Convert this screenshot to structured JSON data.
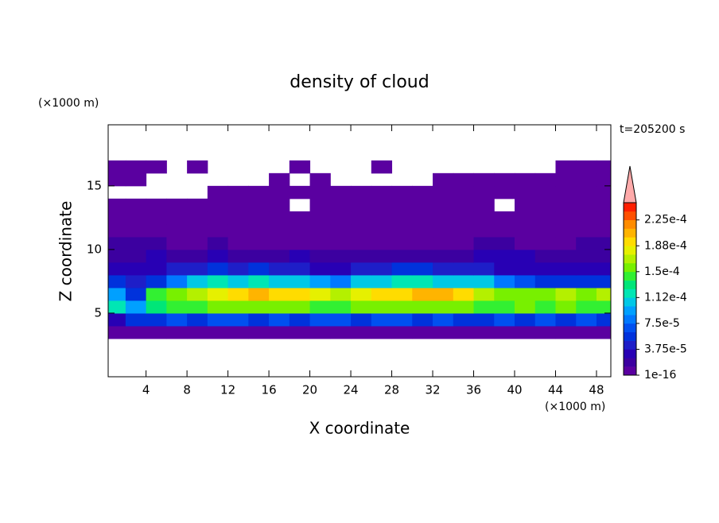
{
  "chart_data": {
    "type": "contour",
    "title": "density of cloud",
    "x_label": "X coordinate",
    "y_label": "Z coordinate",
    "x_unit": "(×1000 m)",
    "y_unit": "(×1000 m)",
    "time_label": "t=205200 s",
    "xlim": [
      0.3,
      49.4
    ],
    "ylim": [
      0,
      19.8
    ],
    "xticks": [
      4,
      8,
      12,
      16,
      20,
      24,
      28,
      32,
      36,
      40,
      44,
      48
    ],
    "yticks": [
      5,
      10,
      15
    ],
    "field": {
      "x_edges": [
        0,
        2,
        4,
        6,
        8,
        10,
        12,
        14,
        16,
        18,
        20,
        22,
        24,
        26,
        28,
        30,
        32,
        34,
        36,
        38,
        40,
        42,
        44,
        46,
        48,
        50
      ],
      "z_edges": [
        3,
        4,
        5,
        6,
        7,
        8,
        9,
        10,
        11,
        12,
        13,
        14,
        15,
        16,
        17
      ],
      "values": [
        [
          1e-06,
          1e-06,
          1e-06,
          1e-06,
          1e-06,
          1e-06,
          1e-06,
          1e-06,
          1e-06,
          1e-06,
          1e-06,
          1e-06,
          1e-06,
          1e-06,
          1e-06,
          1e-06,
          1e-06,
          1e-06,
          1e-06,
          1e-06,
          1e-06,
          1e-06,
          1e-06,
          1e-06,
          1e-06
        ],
        [
          2.5e-05,
          5e-05,
          6e-05,
          7e-05,
          6e-05,
          7e-05,
          7e-05,
          6e-05,
          7e-05,
          6e-05,
          7e-05,
          7e-05,
          6e-05,
          7e-05,
          7e-05,
          6e-05,
          7e-05,
          6e-05,
          6e-05,
          7e-05,
          6e-05,
          7e-05,
          6e-05,
          7e-05,
          6e-05
        ],
        [
          0.00012,
          9e-05,
          0.00013,
          0.00014,
          0.00014,
          0.00015,
          0.00015,
          0.00015,
          0.00015,
          0.00015,
          0.00014,
          0.00014,
          0.00015,
          0.00015,
          0.00015,
          0.00016,
          0.00015,
          0.00015,
          0.00014,
          0.00014,
          0.00015,
          0.00014,
          0.00015,
          0.00014,
          0.00014
        ],
        [
          9e-05,
          6e-05,
          0.00014,
          0.00016,
          0.00017,
          0.00018,
          0.00019,
          0.0002,
          0.00019,
          0.00019,
          0.00018,
          0.00017,
          0.00018,
          0.00019,
          0.00019,
          0.0002,
          0.0002,
          0.00019,
          0.00017,
          0.00015,
          0.00016,
          0.00016,
          0.00017,
          0.00016,
          0.00017
        ],
        [
          5e-05,
          4e-05,
          6e-05,
          8e-05,
          0.0001,
          0.00012,
          0.00011,
          0.00012,
          0.00011,
          0.0001,
          9e-05,
          8e-05,
          0.0001,
          0.00011,
          0.00012,
          0.00012,
          0.00011,
          0.0001,
          0.0001,
          8e-05,
          7e-05,
          6e-05,
          6e-05,
          5e-05,
          6e-05
        ],
        [
          3e-05,
          3e-05,
          3e-05,
          4e-05,
          4e-05,
          5e-05,
          4e-05,
          5e-05,
          4e-05,
          4e-05,
          3e-05,
          3e-05,
          4e-05,
          4e-05,
          5e-05,
          5e-05,
          4e-05,
          4e-05,
          4e-05,
          3e-05,
          3e-05,
          3e-05,
          3e-05,
          3e-05,
          3e-05
        ],
        [
          2e-05,
          2e-05,
          2.5e-05,
          2e-05,
          2e-05,
          3e-05,
          2e-05,
          2e-05,
          2e-05,
          2.5e-05,
          2e-05,
          2e-05,
          2e-05,
          2e-05,
          2e-05,
          2e-05,
          2e-05,
          2e-05,
          3e-05,
          3e-05,
          2.5e-05,
          2e-05,
          2e-05,
          2e-05,
          2e-05
        ],
        [
          1.5e-05,
          1.5e-05,
          1.5e-05,
          1e-05,
          1e-05,
          1.5e-05,
          1e-05,
          1e-05,
          1e-05,
          1e-05,
          1e-05,
          1e-05,
          1e-05,
          1e-05,
          1e-05,
          1e-05,
          1e-05,
          1e-05,
          1.5e-05,
          1.5e-05,
          1e-05,
          1e-05,
          1e-05,
          1.5e-05,
          1.5e-05
        ],
        [
          8e-06,
          8e-06,
          8e-06,
          5e-06,
          5e-06,
          5e-06,
          5e-06,
          5e-06,
          5e-06,
          5e-06,
          5e-06,
          5e-06,
          5e-06,
          5e-06,
          5e-06,
          5e-06,
          5e-06,
          5e-06,
          8e-06,
          8e-06,
          5e-06,
          5e-06,
          5e-06,
          8e-06,
          8e-06
        ],
        [
          3e-06,
          3e-06,
          3e-06,
          3e-06,
          3e-06,
          3e-06,
          3e-06,
          3e-06,
          3e-06,
          3e-06,
          3e-06,
          3e-06,
          3e-06,
          3e-06,
          3e-06,
          3e-06,
          3e-06,
          3e-06,
          3e-06,
          3e-06,
          3e-06,
          3e-06,
          3e-06,
          3e-06,
          3e-06
        ],
        [
          1e-06,
          1e-06,
          1e-06,
          1e-06,
          1e-06,
          1e-06,
          1e-06,
          1e-06,
          1e-06,
          null,
          1e-06,
          1e-06,
          1e-06,
          1e-06,
          1e-06,
          1e-06,
          1e-06,
          1e-06,
          1e-06,
          null,
          1e-06,
          1e-06,
          1e-06,
          1e-06,
          1e-06
        ],
        [
          null,
          null,
          null,
          null,
          null,
          1e-06,
          1e-06,
          1e-06,
          1e-06,
          1e-06,
          1e-06,
          1e-06,
          1e-06,
          1e-06,
          1e-06,
          1e-06,
          1e-06,
          1e-06,
          1e-06,
          1e-06,
          1e-06,
          1e-06,
          1e-06,
          1e-06,
          1e-06
        ],
        [
          1e-06,
          1e-06,
          null,
          null,
          null,
          null,
          null,
          null,
          1e-06,
          null,
          1e-06,
          null,
          null,
          null,
          null,
          null,
          1e-06,
          1e-06,
          1e-06,
          1e-06,
          1e-06,
          1e-06,
          1e-06,
          1e-06,
          1e-06
        ],
        [
          1e-06,
          1e-06,
          1e-06,
          null,
          1e-06,
          null,
          null,
          null,
          null,
          1e-06,
          null,
          null,
          null,
          1e-06,
          null,
          null,
          null,
          null,
          null,
          null,
          null,
          null,
          1e-06,
          1e-06,
          1e-06
        ]
      ]
    },
    "colorbar": {
      "levels": [
        1e-16,
        1.25e-05,
        2.5e-05,
        3.75e-05,
        5e-05,
        6.25e-05,
        7.5e-05,
        8.75e-05,
        0.0001,
        0.0001125,
        0.000125,
        0.0001375,
        0.00015,
        0.0001625,
        0.000175,
        0.0001875,
        0.0002,
        0.0002125,
        0.000225,
        0.0002375,
        0.00025
      ],
      "colors": [
        "#5a00a0",
        "#3c00a0",
        "#2800b4",
        "#1e1ec8",
        "#0032dc",
        "#0050f0",
        "#0078ff",
        "#00a0ff",
        "#00c8e6",
        "#00e6b4",
        "#00e678",
        "#32f032",
        "#78f000",
        "#b4f000",
        "#e6f000",
        "#ffdc00",
        "#ffb400",
        "#ff8c00",
        "#ff5000",
        "#ff1e00"
      ],
      "extend_color": "#ffaaaa",
      "ticks": [
        {
          "value": 1e-16,
          "label": "1e-16"
        },
        {
          "value": 3.75e-05,
          "label": "3.75e-5"
        },
        {
          "value": 7.5e-05,
          "label": "7.5e-5"
        },
        {
          "value": 0.0001125,
          "label": "1.12e-4"
        },
        {
          "value": 0.00015,
          "label": "1.5e-4"
        },
        {
          "value": 0.0001875,
          "label": "1.88e-4"
        },
        {
          "value": 0.000225,
          "label": "2.25e-4"
        }
      ]
    }
  }
}
